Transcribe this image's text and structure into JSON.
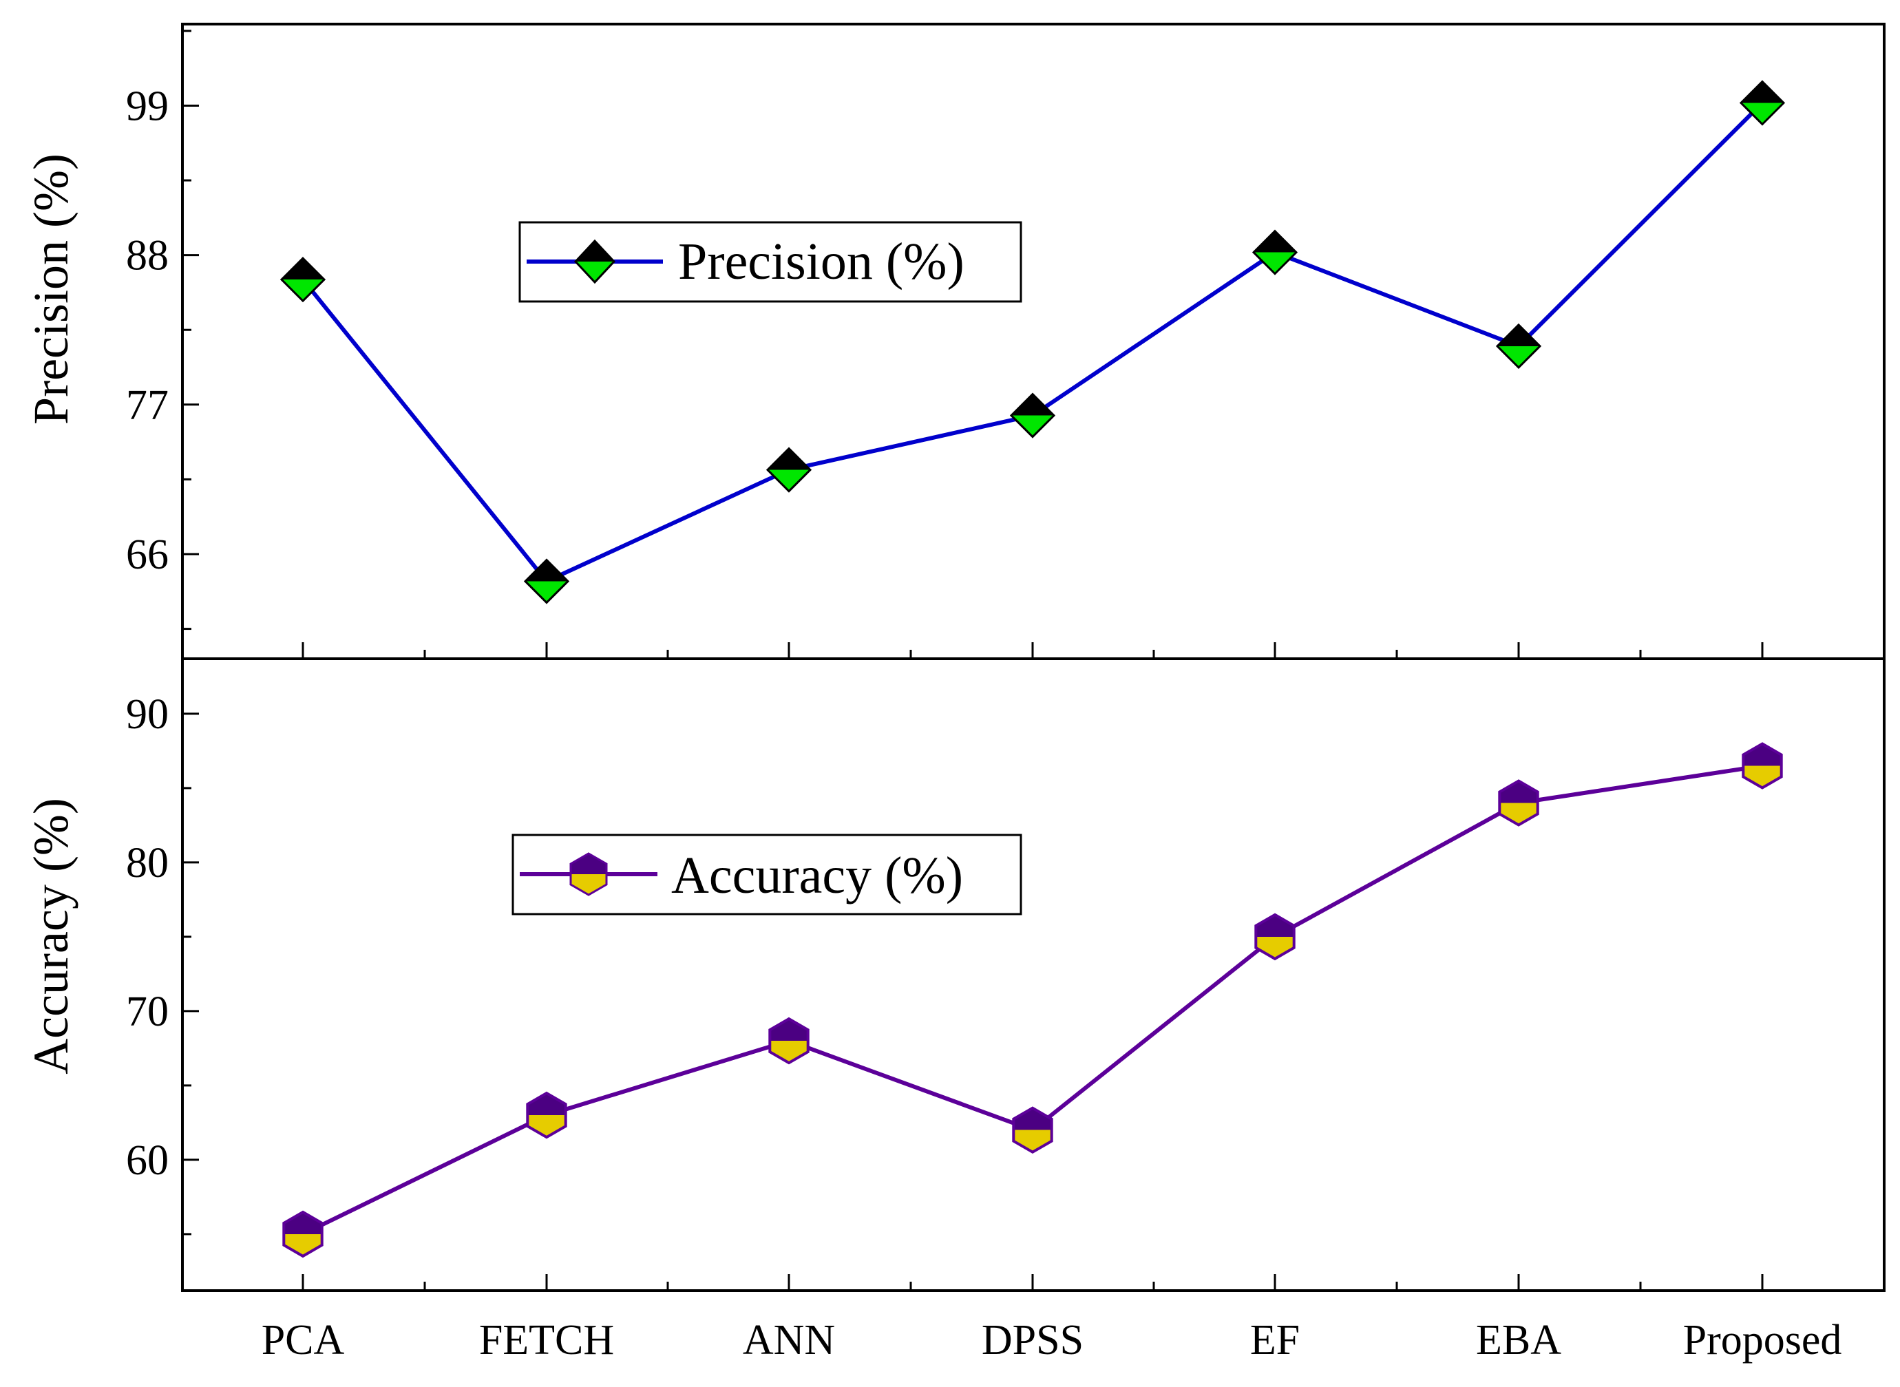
{
  "chart_data": [
    {
      "type": "line",
      "categories": [
        "PCA",
        "FETCH",
        "ANN",
        "DPSS",
        "EF",
        "EBA",
        "Proposed"
      ],
      "series": [
        {
          "name": "Precision (%)",
          "values": [
            86.2,
            64.0,
            72.2,
            76.2,
            88.2,
            81.3,
            99.2
          ],
          "line_color": "#0000cc",
          "marker": "diamond",
          "marker_top_color": "#000000",
          "marker_bottom_color": "#00e600"
        }
      ],
      "ylabel": "Precision (%)",
      "xlabel": "",
      "ylim": [
        58.3,
        105.0
      ],
      "yticks": [
        66,
        77,
        88,
        99
      ],
      "legend": "upper-left",
      "grid": false
    },
    {
      "type": "line",
      "categories": [
        "PCA",
        "FETCH",
        "ANN",
        "DPSS",
        "EF",
        "EBA",
        "Proposed"
      ],
      "series": [
        {
          "name": "Accuracy (%)",
          "values": [
            55,
            63,
            68,
            62,
            75,
            84,
            86.5
          ],
          "line_color": "#5c0099",
          "marker": "hexagon",
          "marker_top_color": "#4b0082",
          "marker_bottom_color": "#e6cc00"
        }
      ],
      "ylabel": "Accuracy (%)",
      "xlabel": "",
      "ylim": [
        51.2,
        93.7
      ],
      "yticks": [
        60,
        70,
        80,
        90
      ],
      "legend": "center-left",
      "grid": false
    }
  ]
}
